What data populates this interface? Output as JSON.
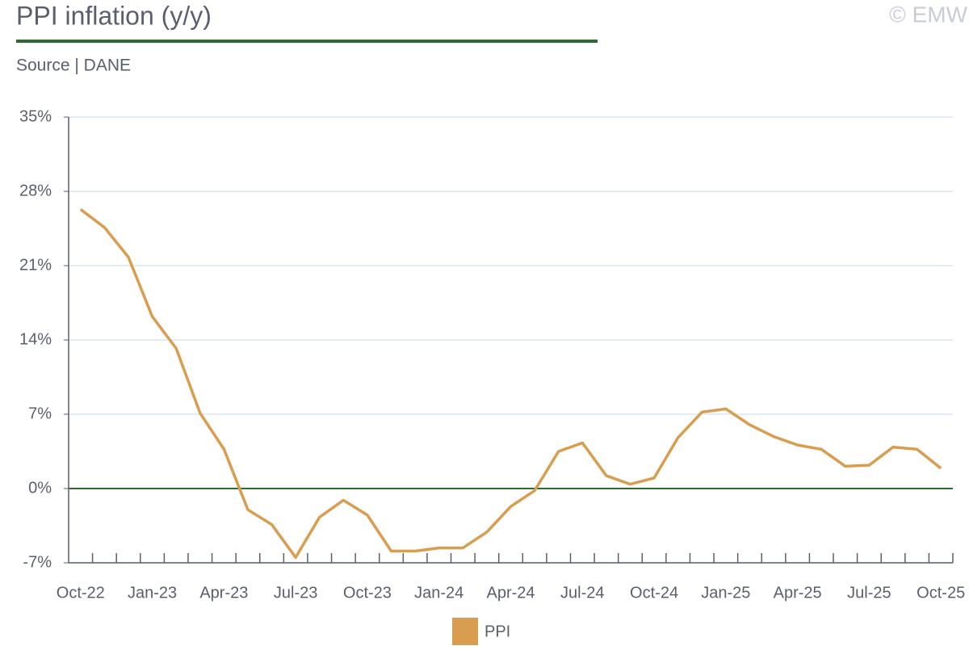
{
  "chart_data": {
    "type": "line",
    "title": "PPI inflation (y/y)",
    "subtitle": "Source | DANE",
    "watermark": "© EMW",
    "categories": [
      "Oct-22",
      null,
      null,
      "Jan-23",
      null,
      null,
      "Apr-23",
      null,
      null,
      "Jul-23",
      null,
      null,
      "Oct-23",
      null,
      null,
      "Jan-24",
      null,
      null,
      "Apr-24",
      null,
      null,
      "Jul-24",
      null,
      null,
      "Oct-24",
      null,
      null,
      "Jan-25",
      null,
      null,
      "Apr-25",
      null,
      null,
      "Jul-25",
      null,
      null,
      "Oct-25"
    ],
    "series": [
      {
        "name": "PPI",
        "color": "#d99d4f",
        "values": [
          26.3,
          24.6,
          21.8,
          16.2,
          13.2,
          7.1,
          3.7,
          -2.0,
          -3.4,
          -6.5,
          -2.7,
          -1.1,
          -2.5,
          -5.9,
          -5.9,
          -5.6,
          -5.6,
          -4.1,
          -1.7,
          -0.2,
          3.5,
          4.3,
          1.2,
          0.4,
          1.0,
          4.8,
          7.2,
          7.5,
          6.0,
          4.9,
          4.1,
          3.7,
          2.1,
          2.2,
          3.9,
          3.7,
          1.9
        ]
      }
    ],
    "ylim": [
      -7,
      35
    ],
    "yticks": [
      {
        "value": -7,
        "label": "-7%"
      },
      {
        "value": 0,
        "label": "0%"
      },
      {
        "value": 7,
        "label": "7%"
      },
      {
        "value": 14,
        "label": "14%"
      },
      {
        "value": 21,
        "label": "21%"
      },
      {
        "value": 28,
        "label": "28%"
      },
      {
        "value": 35,
        "label": "35%"
      }
    ],
    "grid": true,
    "legend": "bottom"
  }
}
